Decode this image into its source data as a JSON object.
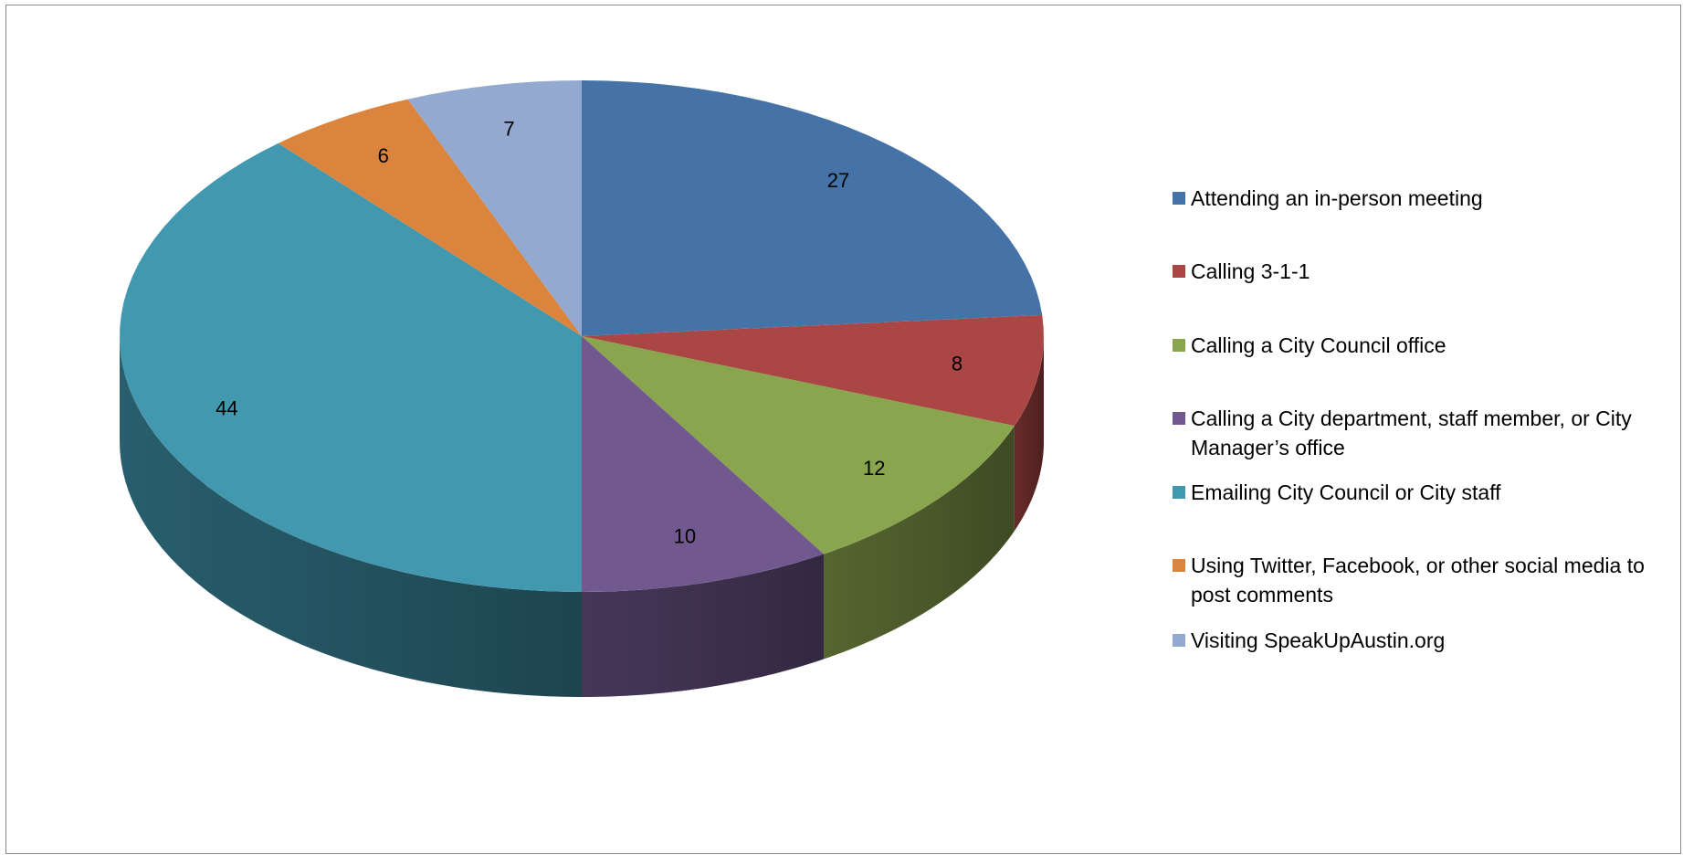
{
  "chart_data": {
    "type": "pie",
    "style": "3d",
    "legend_position": "right",
    "slices": [
      {
        "label": "Attending an in-person meeting",
        "value": 27,
        "color": "#4572A7"
      },
      {
        "label": "Calling 3-1-1",
        "value": 8,
        "color": "#AA4643"
      },
      {
        "label": "Calling a City Council office",
        "value": 12,
        "color": "#89A54E"
      },
      {
        "label": "Calling a City department, staff member, or City Manager’s office",
        "value": 10,
        "color": "#71588F"
      },
      {
        "label": "Emailing City Council or City staff",
        "value": 44,
        "color": "#4198AF"
      },
      {
        "label": "Using Twitter, Facebook, or other social media to post comments",
        "value": 6,
        "color": "#DB843D"
      },
      {
        "label": "Visiting SpeakUpAustin.org",
        "value": 7,
        "color": "#93A9CF"
      }
    ]
  }
}
